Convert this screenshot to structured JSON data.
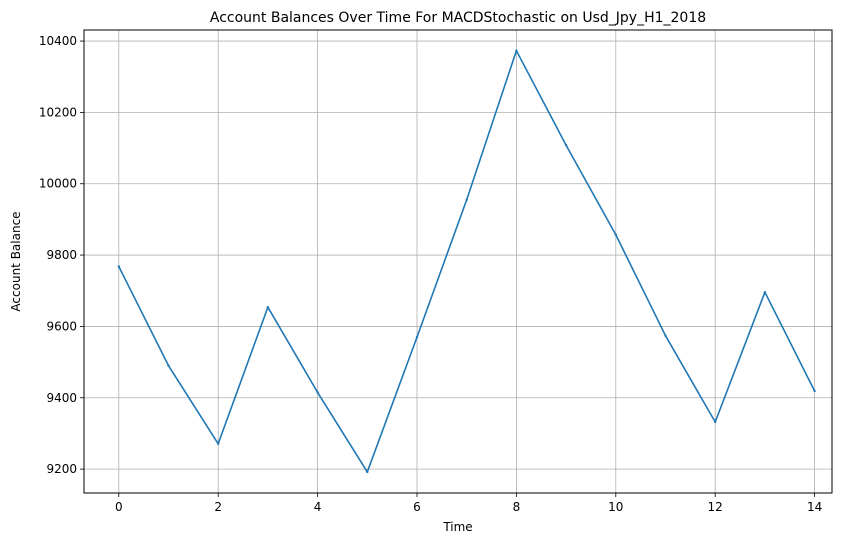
{
  "chart_data": {
    "type": "line",
    "title": "Account Balances Over Time For MACDStochastic on Usd_Jpy_H1_2018",
    "xlabel": "Time",
    "ylabel": "Account Balance",
    "x": [
      0,
      1,
      2,
      3,
      4,
      5,
      6,
      7,
      8,
      9,
      10,
      11,
      12,
      13,
      14
    ],
    "series": [
      {
        "values": [
          9768,
          9490,
          9271,
          9654,
          9415,
          9192,
          9570,
          9955,
          10373,
          10108,
          9857,
          9574,
          9332,
          9696,
          9419
        ]
      }
    ],
    "xlim": [
      -0.7,
      14.35
    ],
    "ylim": [
      9133,
      10431
    ],
    "xticks": [
      0,
      2,
      4,
      6,
      8,
      10,
      12,
      14
    ],
    "yticks": [
      9200,
      9400,
      9600,
      9800,
      10000,
      10200,
      10400
    ],
    "xtick_labels": [
      "0",
      "2",
      "4",
      "6",
      "8",
      "10",
      "12",
      "14"
    ],
    "ytick_labels": [
      "9200",
      "9400",
      "9600",
      "9800",
      "10000",
      "10200",
      "10400"
    ],
    "grid": true,
    "colors": {
      "line": "#1f77b4",
      "grid": "#b0b0b0",
      "axes": "#000000"
    }
  }
}
